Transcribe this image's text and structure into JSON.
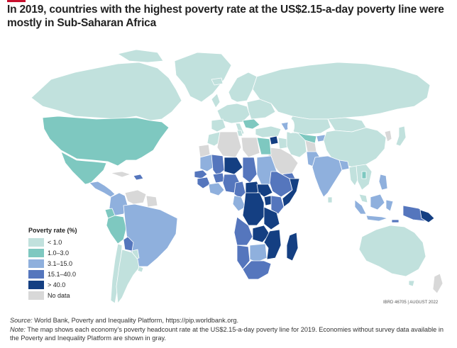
{
  "title": "In 2019, countries with the highest poverty rate at the US$2.15-a-day poverty line were mostly in Sub-Saharan Africa",
  "legend": {
    "title": "Poverty rate (%)",
    "items": [
      {
        "label": "< 1.0",
        "color": "#c1e1dd"
      },
      {
        "label": "1.0–3.0",
        "color": "#7ec8c0"
      },
      {
        "label": "3.1–15.0",
        "color": "#8fb0dd"
      },
      {
        "label": "15.1–40.0",
        "color": "#5576bd"
      },
      {
        "label": "> 40.0",
        "color": "#143f82"
      },
      {
        "label": "No data",
        "color": "#d8d8d8"
      }
    ]
  },
  "map_id": "IBRD 46705 | AUGUST 2022",
  "footer": {
    "source_label": "Source:",
    "source_text": " World Bank, Poverty and Inequality Platform, https://pip.worldbank.org.",
    "note_label": "Note:",
    "note_text": " The map shows each economy’s poverty headcount rate at the US$2.15-a-day poverty line for 2019. Economies without survey data available in the Poverty and Inequality Platform are shown in gray."
  }
}
